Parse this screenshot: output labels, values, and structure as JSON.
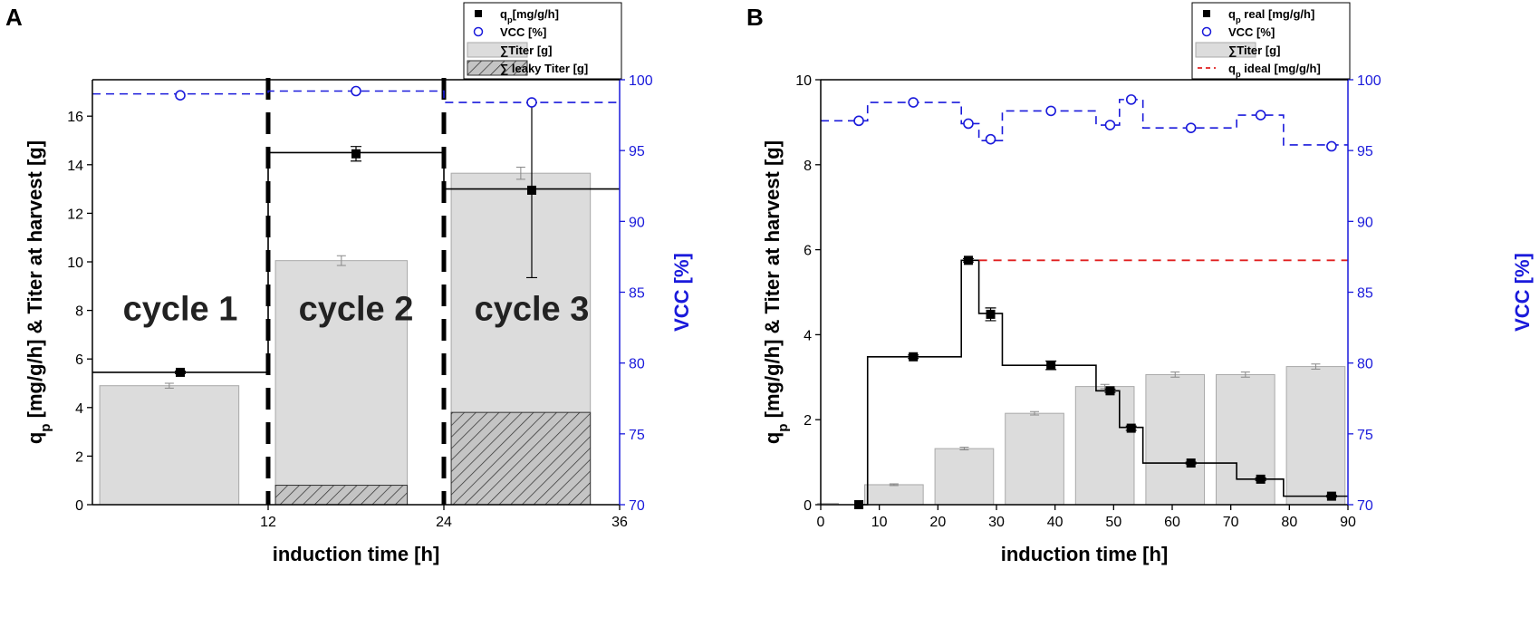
{
  "colors": {
    "axis_left": "#000000",
    "axis_right": "#1a1adb",
    "bar_fill": "#dcdcdc",
    "bar_stroke": "#a9a9a9",
    "vcc": "#1a1adb",
    "qp_ideal": "#e02020"
  },
  "chart_data": [
    {
      "panel_label": "A",
      "type": "bar",
      "xlabel": "induction time [h]",
      "ylabel_left": "q_p [mg/g/h]  & Titer at harvest [g]",
      "ylabel_right": "VCC [%]",
      "xlim": [
        0,
        36
      ],
      "ylim": [
        0,
        17.5
      ],
      "ylim_right": [
        70,
        100
      ],
      "x_ticks": [
        12,
        24,
        36
      ],
      "y_ticks": [
        0,
        2,
        4,
        6,
        8,
        10,
        12,
        14,
        16
      ],
      "y_ticks_right": [
        70,
        75,
        80,
        85,
        90,
        95,
        100
      ],
      "cycle_boundaries": [
        12,
        24
      ],
      "cycle_labels": [
        {
          "text": "cycle 1",
          "x": 6,
          "y": 7.6
        },
        {
          "text": "cycle 2",
          "x": 18,
          "y": 7.6
        },
        {
          "text": "cycle 3",
          "x": 30,
          "y": 7.6
        }
      ],
      "legend": {
        "position": "top-right",
        "entries": [
          "q<sub>p</sub>[mg/g/h]",
          "VCC [%]",
          "∑Titer [g]",
          "∑ leaky Titer [g]"
        ]
      },
      "series": [
        {
          "name": "∑Titer [g]",
          "kind": "bar",
          "x_ranges": [
            [
              0.5,
              10
            ],
            [
              12.5,
              21.5
            ],
            [
              24.5,
              34
            ]
          ],
          "values": [
            4.9,
            10.05,
            13.65
          ],
          "errors": [
            0.1,
            0.2,
            0.25
          ]
        },
        {
          "name": "∑ leaky Titer [g]",
          "kind": "bar-hatched",
          "x_ranges": [
            [
              0.5,
              10
            ],
            [
              12.5,
              21.5
            ],
            [
              24.5,
              34
            ]
          ],
          "values": [
            0,
            0.8,
            3.8
          ]
        },
        {
          "name": "q_p [mg/g/h]",
          "kind": "step",
          "x_edges": [
            0,
            12,
            24,
            36
          ],
          "values": [
            5.45,
            14.5,
            13.0
          ],
          "points_x": [
            6,
            18,
            30
          ],
          "points_y": [
            5.45,
            14.45,
            12.95
          ],
          "errors": [
            0.05,
            0.3,
            3.6
          ]
        },
        {
          "name": "VCC [%]",
          "kind": "step-dashed",
          "axis": "right",
          "x_edges": [
            0,
            12,
            24,
            36
          ],
          "values": [
            99.0,
            99.2,
            98.4
          ],
          "points_x": [
            6,
            18,
            30
          ],
          "points_y": [
            98.9,
            99.2,
            98.4
          ]
        }
      ]
    },
    {
      "panel_label": "B",
      "type": "bar",
      "xlabel": "induction time [h]",
      "ylabel_left": "q_p [mg/g/h]  & Titer at harvest [g]",
      "ylabel_right": "VCC [%]",
      "xlim": [
        0,
        90
      ],
      "ylim": [
        0,
        10
      ],
      "ylim_right": [
        70,
        100
      ],
      "x_ticks": [
        0,
        10,
        20,
        30,
        40,
        50,
        60,
        70,
        80,
        90
      ],
      "y_ticks": [
        0,
        2,
        4,
        6,
        8,
        10
      ],
      "y_ticks_right": [
        70,
        75,
        80,
        85,
        90,
        95,
        100
      ],
      "legend": {
        "position": "top-right",
        "entries": [
          "q<sub>p</sub> real [mg/g/h]",
          "VCC [%]",
          "∑Titer [g]",
          "q<sub>p</sub> ideal [mg/g/h]"
        ]
      },
      "series": [
        {
          "name": "∑Titer [g]",
          "kind": "bar",
          "x_ranges": [
            [
              -0.5,
              3
            ],
            [
              7.5,
              17.5
            ],
            [
              19.5,
              29.5
            ],
            [
              31.5,
              41.5
            ],
            [
              43.5,
              53.5
            ],
            [
              55.5,
              65.5
            ],
            [
              67.5,
              77.5
            ],
            [
              79.5,
              89.5
            ]
          ],
          "values": [
            0.03,
            0.47,
            1.32,
            2.15,
            2.78,
            3.06,
            3.06,
            3.25
          ],
          "errors": [
            0,
            0.02,
            0.03,
            0.04,
            0.05,
            0.06,
            0.06,
            0.06
          ]
        },
        {
          "name": "q_p real [mg/g/h]",
          "kind": "step",
          "x_edges": [
            7,
            8,
            24,
            27,
            31,
            47,
            51,
            55,
            71,
            79,
            90
          ],
          "values": [
            0,
            3.48,
            5.75,
            4.5,
            3.28,
            2.68,
            1.82,
            0.98,
            0.6,
            0.2
          ],
          "points_x": [
            6.5,
            15.8,
            25.2,
            29,
            39.3,
            49.4,
            53,
            63.2,
            75.1,
            87.2
          ],
          "points_y": [
            0,
            3.48,
            5.75,
            4.48,
            3.28,
            2.68,
            1.8,
            0.98,
            0.6,
            0.2
          ],
          "errors": [
            0,
            0.04,
            0.04,
            0.15,
            0.1,
            0.04,
            0.05,
            0.02,
            0.03,
            0.02
          ]
        },
        {
          "name": "VCC [%]",
          "kind": "step-dashed",
          "axis": "right",
          "x_edges": [
            0,
            8,
            24,
            27,
            31,
            47,
            51,
            55,
            71,
            79,
            90
          ],
          "values": [
            97.1,
            98.4,
            96.9,
            95.7,
            97.8,
            96.8,
            98.6,
            96.6,
            97.5,
            95.4
          ],
          "points_x": [
            6.5,
            15.8,
            25.2,
            29,
            39.3,
            49.4,
            53,
            63.2,
            75.1,
            87.2
          ],
          "points_y": [
            97.1,
            98.4,
            96.9,
            95.8,
            97.8,
            96.8,
            98.6,
            96.6,
            97.5,
            95.3
          ]
        },
        {
          "name": "q_p ideal [mg/g/h]",
          "kind": "line-dashed",
          "x": [
            27,
            90
          ],
          "y": [
            5.75,
            5.75
          ]
        }
      ]
    }
  ]
}
